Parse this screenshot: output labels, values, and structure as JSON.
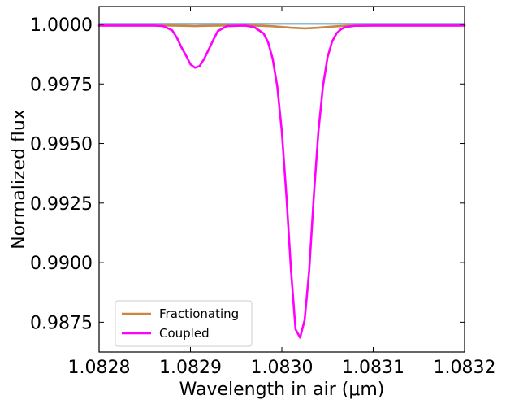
{
  "chart_data": {
    "type": "line",
    "title": "",
    "xlabel": "Wavelength in air (μm)",
    "ylabel": "Normalized flux",
    "xlim": [
      1.0828,
      1.0832
    ],
    "ylim": [
      0.98625,
      1.00075
    ],
    "xticks": [
      1.0828,
      1.0829,
      1.083,
      1.0831,
      1.0832
    ],
    "xtick_labels": [
      "1.0828",
      "1.0829",
      "1.0830",
      "1.0831",
      "1.0832"
    ],
    "yticks": [
      0.9875,
      0.99,
      0.9925,
      0.995,
      0.9975,
      1.0
    ],
    "ytick_labels": [
      "0.9875",
      "0.9900",
      "0.9925",
      "0.9950",
      "0.9975",
      "1.0000"
    ],
    "grid": false,
    "legend_position": "lower-left",
    "baseline": {
      "color": "#1f77b4",
      "x": [
        1.0828,
        1.0832
      ],
      "y": [
        1.00002,
        1.00002
      ]
    },
    "series": [
      {
        "name": "Fractionating",
        "color": "#cd853f",
        "x": [
          1.0828,
          1.08288,
          1.082905,
          1.08293,
          1.08297,
          1.08299,
          1.08301,
          1.083025,
          1.08304,
          1.08306,
          1.08308,
          1.0831,
          1.0832
        ],
        "y": [
          0.99995,
          0.99995,
          0.99993,
          0.99995,
          0.99995,
          0.99992,
          0.99986,
          0.99983,
          0.99986,
          0.99992,
          0.99995,
          0.99995,
          0.99995
        ]
      },
      {
        "name": "Coupled",
        "color": "#ff00ff",
        "x": [
          1.0828,
          1.08286,
          1.08287,
          1.08288,
          1.082885,
          1.08289,
          1.082895,
          1.0829,
          1.082905,
          1.08291,
          1.082915,
          1.08292,
          1.082925,
          1.08293,
          1.08294,
          1.08296,
          1.08297,
          1.08298,
          1.082985,
          1.08299,
          1.082995,
          1.083,
          1.083005,
          1.08301,
          1.083015,
          1.08302,
          1.083025,
          1.08303,
          1.083035,
          1.08304,
          1.083045,
          1.08305,
          1.083055,
          1.08306,
          1.083065,
          1.08307,
          1.08308,
          1.0831,
          1.0832
        ],
        "y": [
          0.99995,
          0.99995,
          0.99993,
          0.99975,
          0.99945,
          0.99905,
          0.9987,
          0.99832,
          0.99818,
          0.99825,
          0.99855,
          0.99895,
          0.99935,
          0.99972,
          0.99993,
          0.99995,
          0.99988,
          0.99962,
          0.99925,
          0.99855,
          0.9974,
          0.9955,
          0.9928,
          0.9897,
          0.9872,
          0.98685,
          0.9876,
          0.9897,
          0.9928,
          0.9955,
          0.9974,
          0.99862,
          0.99928,
          0.99963,
          0.9998,
          0.99989,
          0.99994,
          0.99995,
          0.99995
        ]
      }
    ]
  }
}
